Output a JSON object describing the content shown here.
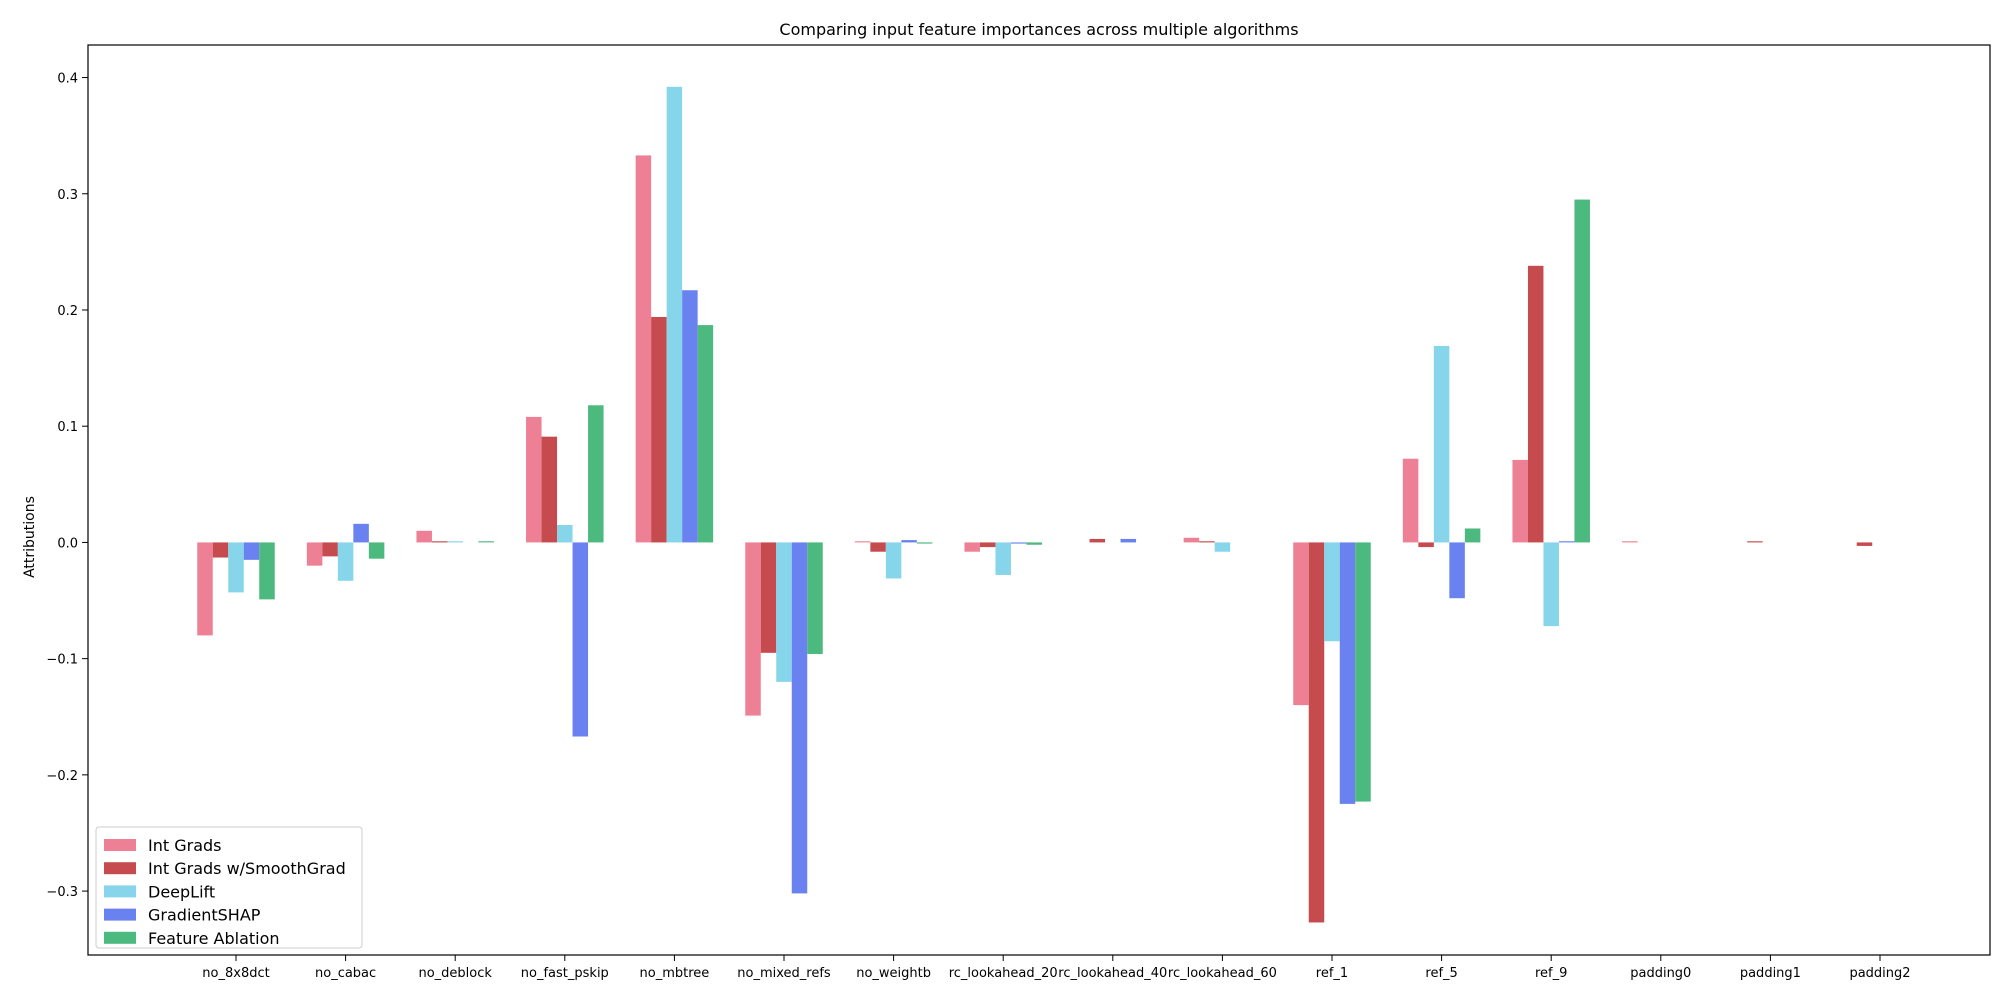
{
  "chart_data": {
    "type": "bar",
    "title": "Comparing input feature importances across multiple algorithms",
    "xlabel": "",
    "ylabel": "Attributions",
    "ylim": [
      -0.355,
      0.428
    ],
    "yticks": [
      -0.3,
      -0.2,
      -0.1,
      0.0,
      0.1,
      0.2,
      0.3,
      0.4
    ],
    "ytick_labels": [
      "−0.3",
      "−0.2",
      "−0.1",
      "0.0",
      "0.1",
      "0.2",
      "0.3",
      "0.4"
    ],
    "grid": false,
    "legend_position": "lower-left",
    "categories": [
      "no_8x8dct",
      "no_cabac",
      "no_deblock",
      "no_fast_pskip",
      "no_mbtree",
      "no_mixed_refs",
      "no_weightb",
      "rc_lookahead_20",
      "rc_lookahead_40",
      "rc_lookahead_60",
      "ref_1",
      "ref_5",
      "ref_9",
      "padding0",
      "padding1",
      "padding2"
    ],
    "series": [
      {
        "name": "Int Grads",
        "color": "#ee8096",
        "values": [
          -0.08,
          -0.02,
          0.01,
          0.108,
          0.333,
          -0.149,
          0.001,
          -0.008,
          0.0,
          0.004,
          -0.14,
          0.072,
          0.071,
          0.001,
          0.0,
          0.0
        ]
      },
      {
        "name": "Int Grads w/SmoothGrad",
        "color": "#c54b4f",
        "values": [
          -0.013,
          -0.012,
          0.001,
          0.091,
          0.194,
          -0.095,
          -0.008,
          -0.004,
          0.003,
          0.001,
          -0.327,
          -0.004,
          0.238,
          0.0,
          0.001,
          -0.003
        ]
      },
      {
        "name": "DeepLift",
        "color": "#87d5ea",
        "values": [
          -0.043,
          -0.033,
          0.001,
          0.015,
          0.392,
          -0.12,
          -0.031,
          -0.028,
          0.0,
          -0.008,
          -0.085,
          0.169,
          -0.072,
          0.0,
          0.0,
          0.0
        ]
      },
      {
        "name": "GradientSHAP",
        "color": "#6a82f0",
        "values": [
          -0.015,
          0.016,
          0.0,
          -0.167,
          0.217,
          -0.302,
          0.002,
          -0.001,
          0.003,
          0.0,
          -0.225,
          -0.048,
          0.001,
          0.0,
          0.0,
          0.0
        ]
      },
      {
        "name": "Feature Ablation",
        "color": "#4cb97f",
        "values": [
          -0.049,
          -0.014,
          0.001,
          0.118,
          0.187,
          -0.096,
          -0.001,
          -0.002,
          0.0,
          0.0,
          -0.223,
          0.012,
          0.295,
          0.0,
          0.0,
          0.0
        ]
      }
    ]
  }
}
